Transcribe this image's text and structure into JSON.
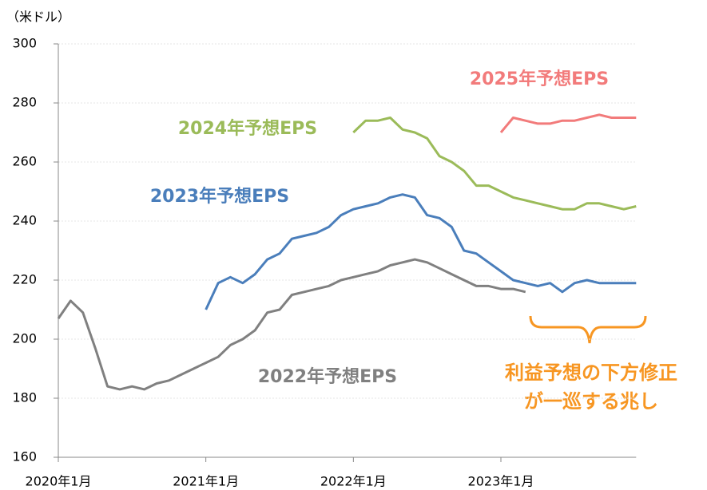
{
  "chart_data": {
    "type": "line",
    "y_unit_label": "（米ドル）",
    "x": [
      "2020-01",
      "2020-02",
      "2020-03",
      "2020-04",
      "2020-05",
      "2020-06",
      "2020-07",
      "2020-08",
      "2020-09",
      "2020-10",
      "2020-11",
      "2020-12",
      "2021-01",
      "2021-02",
      "2021-03",
      "2021-04",
      "2021-05",
      "2021-06",
      "2021-07",
      "2021-08",
      "2021-09",
      "2021-10",
      "2021-11",
      "2021-12",
      "2022-01",
      "2022-02",
      "2022-03",
      "2022-04",
      "2022-05",
      "2022-06",
      "2022-07",
      "2022-08",
      "2022-09",
      "2022-10",
      "2022-11",
      "2022-12",
      "2023-01",
      "2023-02",
      "2023-03",
      "2023-04",
      "2023-05",
      "2023-06",
      "2023-07",
      "2023-08",
      "2023-09",
      "2023-10",
      "2023-11",
      "2023-12"
    ],
    "series": [
      {
        "name": "2022年予想EPS",
        "color": "#808080",
        "values": [
          207,
          213,
          209,
          197,
          184,
          183,
          184,
          183,
          185,
          186,
          188,
          190,
          192,
          194,
          198,
          200,
          203,
          209,
          210,
          215,
          216,
          217,
          218,
          220,
          221,
          222,
          223,
          225,
          226,
          227,
          226,
          224,
          222,
          220,
          218,
          218,
          217,
          217,
          216,
          null,
          null,
          null,
          null,
          null,
          null,
          null,
          null,
          null
        ]
      },
      {
        "name": "2023年予想EPS",
        "color": "#4a7ebb",
        "values": [
          null,
          null,
          null,
          null,
          null,
          null,
          null,
          null,
          null,
          null,
          null,
          null,
          210,
          219,
          221,
          219,
          222,
          227,
          229,
          234,
          235,
          236,
          238,
          242,
          244,
          245,
          246,
          248,
          249,
          248,
          242,
          241,
          238,
          230,
          229,
          226,
          223,
          220,
          219,
          218,
          219,
          216,
          219,
          220,
          219,
          219,
          219,
          219
        ]
      },
      {
        "name": "2024年予想EPS",
        "color": "#9bbb59",
        "values": [
          null,
          null,
          null,
          null,
          null,
          null,
          null,
          null,
          null,
          null,
          null,
          null,
          null,
          null,
          null,
          null,
          null,
          null,
          null,
          null,
          null,
          null,
          null,
          null,
          270,
          274,
          274,
          275,
          271,
          270,
          268,
          262,
          260,
          257,
          252,
          252,
          250,
          248,
          247,
          246,
          245,
          244,
          244,
          246,
          246,
          245,
          244,
          245
        ]
      },
      {
        "name": "2025年予想EPS",
        "color": "#f27b7b",
        "values": [
          null,
          null,
          null,
          null,
          null,
          null,
          null,
          null,
          null,
          null,
          null,
          null,
          null,
          null,
          null,
          null,
          null,
          null,
          null,
          null,
          null,
          null,
          null,
          null,
          null,
          null,
          null,
          null,
          null,
          null,
          null,
          null,
          null,
          null,
          null,
          null,
          270,
          275,
          274,
          273,
          273,
          274,
          274,
          275,
          276,
          275,
          275,
          275
        ]
      }
    ],
    "xticks": [
      {
        "value": "2020-01",
        "label": "2020年1月"
      },
      {
        "value": "2021-01",
        "label": "2021年1月"
      },
      {
        "value": "2022-01",
        "label": "2022年1月"
      },
      {
        "value": "2023-01",
        "label": "2023年1月"
      }
    ],
    "ylim": [
      160,
      300
    ],
    "yticks": [
      160,
      180,
      200,
      220,
      240,
      260,
      280,
      300
    ],
    "grid": true,
    "annotation": [
      "利益予想の下方修正",
      "が一巡する兆し"
    ],
    "annotation_color": "#f79622"
  }
}
